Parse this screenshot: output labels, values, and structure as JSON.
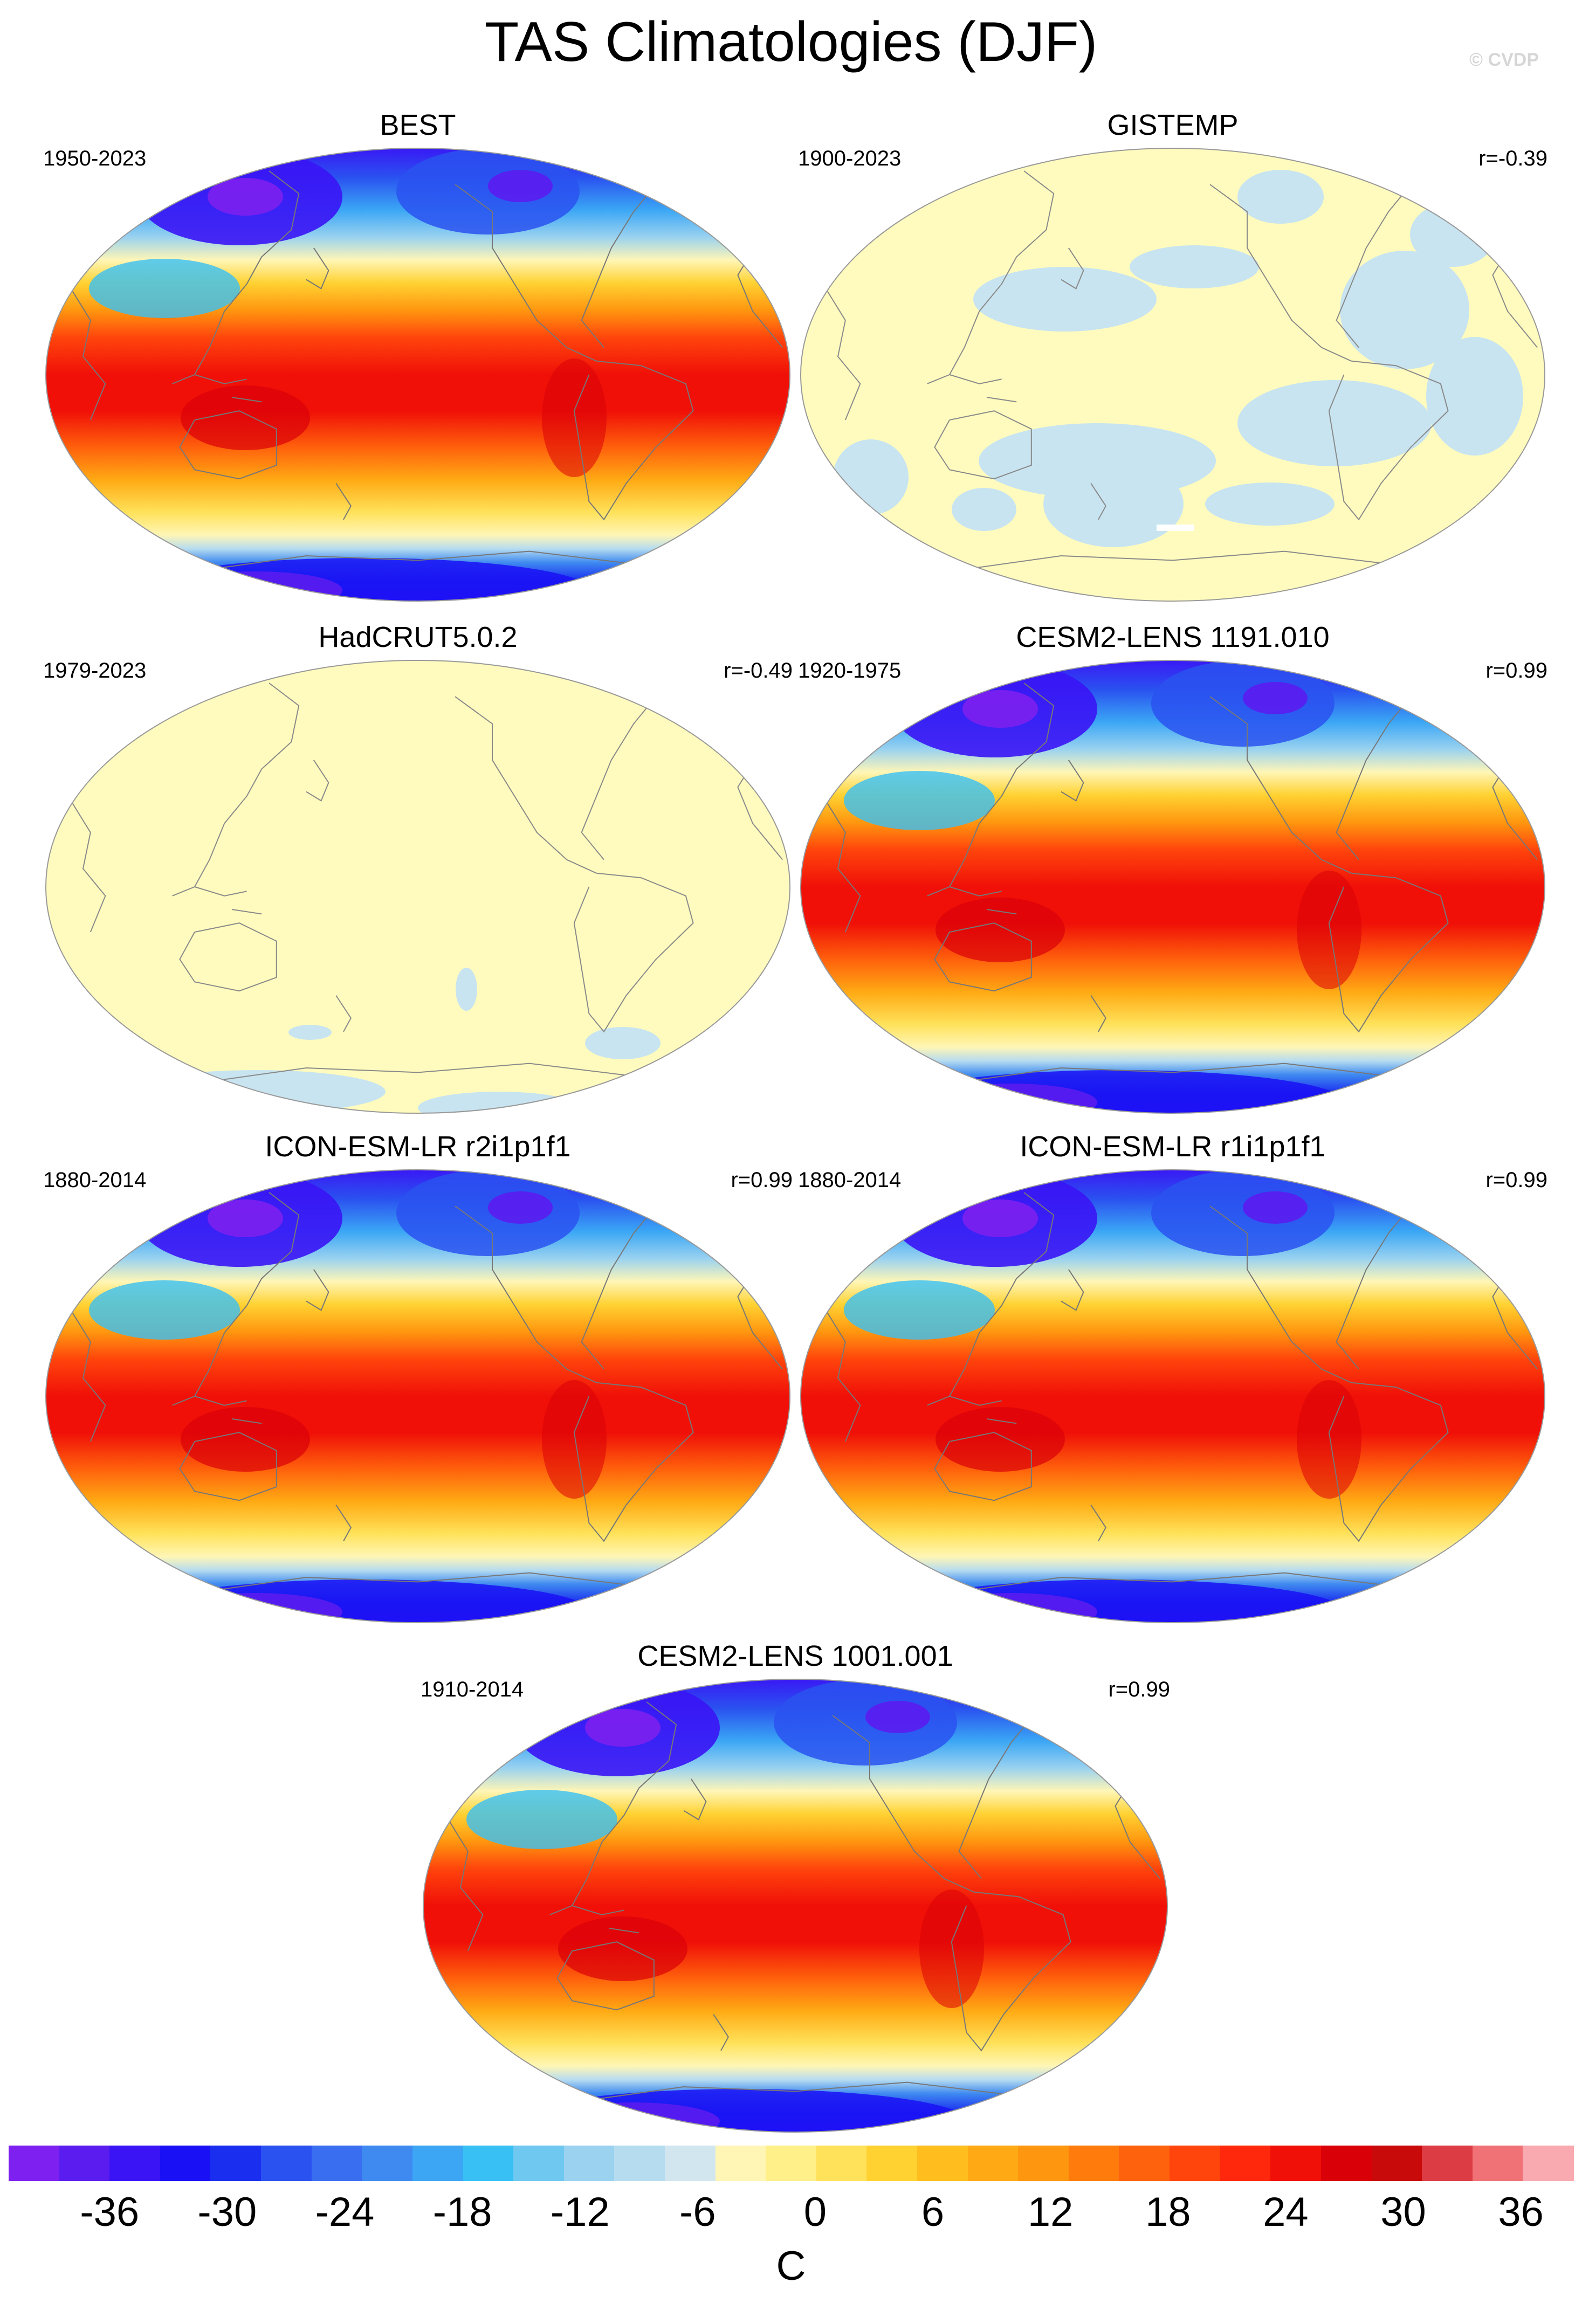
{
  "title": "TAS Climatologies (DJF)",
  "copyright": "© CVDP",
  "colors": {
    "stops": [
      "#7c1ff0",
      "#3b16f0",
      "#1a1cf5",
      "#2b5af0",
      "#2e8ef0",
      "#4ac0f5",
      "#a6d6f0",
      "#c8e4f0",
      "#fff8b0",
      "#ffe46e",
      "#ffc833",
      "#ffa424",
      "#ff7a1a",
      "#ff4014",
      "#ff1e0c",
      "#e6000a",
      "#d40a0a",
      "#e64d4d",
      "#f4aaaa"
    ],
    "coastline": "#777777",
    "land_stroke": "#8a8a8a"
  },
  "panels": [
    {
      "title": "BEST",
      "years": "1950-2023",
      "corr": "",
      "style": "full"
    },
    {
      "title": "GISTEMP",
      "years": "1900-2023",
      "corr": "r=-0.39",
      "style": "diff-gis"
    },
    {
      "title": "HadCRUT5.0.2",
      "years": "1979-2023",
      "corr": "r=-0.49",
      "style": "diff-had"
    },
    {
      "title": "CESM2-LENS 1191.010",
      "years": "1920-1975",
      "corr": "r=0.99",
      "style": "full"
    },
    {
      "title": "ICON-ESM-LR r2i1p1f1",
      "years": "1880-2014",
      "corr": "r=0.99",
      "style": "full"
    },
    {
      "title": "ICON-ESM-LR r1i1p1f1",
      "years": "1880-2014",
      "corr": "r=0.99",
      "style": "full"
    },
    {
      "title": "CESM2-LENS 1001.001",
      "years": "1910-2014",
      "corr": "r=0.99",
      "style": "full"
    }
  ],
  "colorbar": {
    "unit": "C",
    "ticks": [
      "-36",
      "-30",
      "-24",
      "-18",
      "-12",
      "-6",
      "0",
      "6",
      "12",
      "18",
      "24",
      "30",
      "36"
    ],
    "colors": [
      "#7d20f0",
      "#5b1cf0",
      "#3a14f5",
      "#1a10f5",
      "#1a2ef0",
      "#2a52f0",
      "#3a6ef0",
      "#3f8af0",
      "#3ca6f5",
      "#38c0f5",
      "#6ec8f0",
      "#9ad2f0",
      "#b6dcf0",
      "#d2e6f0",
      "#fff6b6",
      "#fff08a",
      "#ffe25a",
      "#ffd232",
      "#ffbe1e",
      "#ffaa14",
      "#ff960f",
      "#ff7c0c",
      "#ff620c",
      "#ff440c",
      "#ff280c",
      "#f01008",
      "#da0008",
      "#c80a0a",
      "#dc3c44",
      "#f07276",
      "#f8aab0"
    ]
  }
}
